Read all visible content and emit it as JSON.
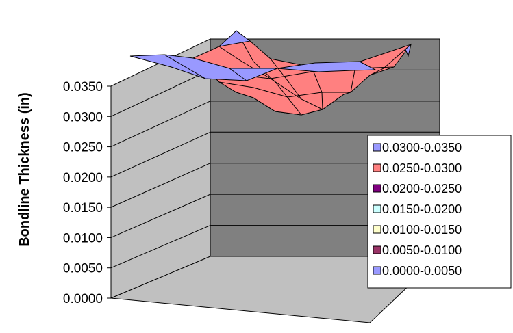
{
  "chart_data": {
    "type": "surface",
    "title": "",
    "ylabel": "Bondline Thickness (in)",
    "xlabel": "",
    "ylim": [
      0,
      0.035
    ],
    "y_ticks": [
      "0.0000",
      "0.0050",
      "0.0100",
      "0.0150",
      "0.0200",
      "0.0250",
      "0.0300",
      "0.0350"
    ],
    "legend_position": "right",
    "legend": [
      {
        "label": "0.0300-0.0350",
        "color": "#9999ff"
      },
      {
        "label": "0.0250-0.0300",
        "color": "#ff8080"
      },
      {
        "label": "0.0200-0.0250",
        "color": "#800080"
      },
      {
        "label": "0.0150-0.0200",
        "color": "#ccffff"
      },
      {
        "label": "0.0100-0.0150",
        "color": "#ffffcc"
      },
      {
        "label": "0.0050-0.0100",
        "color": "#993366"
      },
      {
        "label": "0.0000-0.0050",
        "color": "#9999ff"
      }
    ],
    "colors": {
      "back_wall": "#808080",
      "side_wall": "#c0c0c0",
      "floor": "#c0c0c0"
    }
  }
}
